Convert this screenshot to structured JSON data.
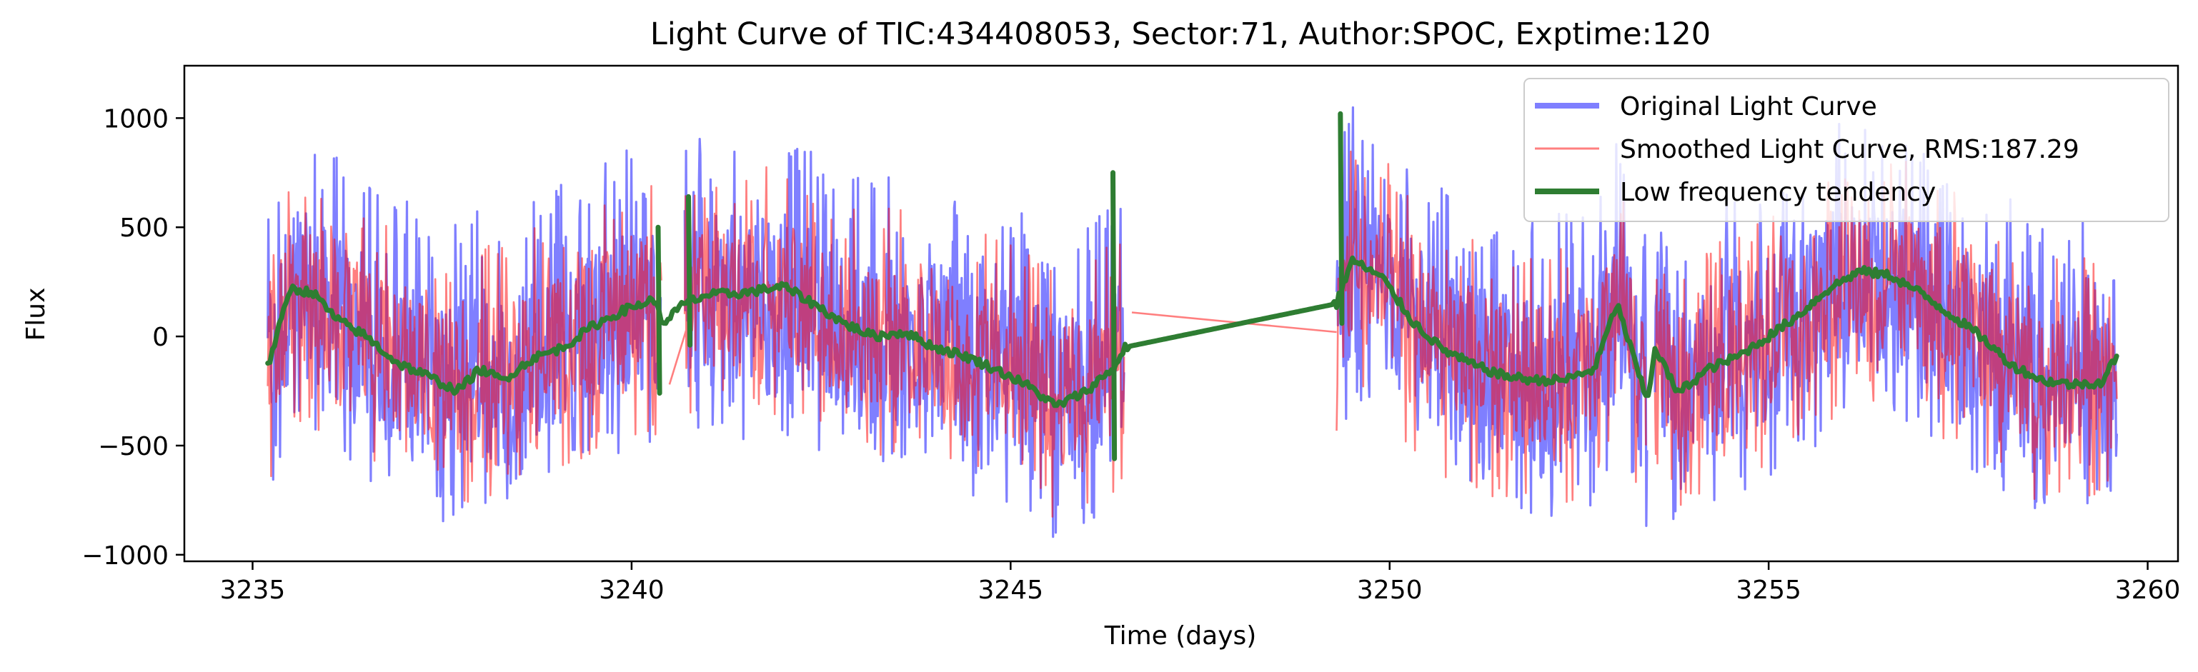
{
  "chart_data": {
    "type": "line",
    "title": "Light Curve of TIC:434408053, Sector:71, Author:SPOC, Exptime:120",
    "xlabel": "Time (days)",
    "ylabel": "Flux",
    "xlim": [
      3234.1,
      3260.4
    ],
    "ylim": [
      -1030,
      1240
    ],
    "x_ticks": [
      3235,
      3240,
      3245,
      3250,
      3255,
      3260
    ],
    "y_ticks": [
      -1000,
      -500,
      0,
      500,
      1000
    ],
    "x_tick_labels": [
      "3235",
      "3240",
      "3245",
      "3250",
      "3255",
      "3260"
    ],
    "y_tick_labels": [
      "−1000",
      "−500",
      "0",
      "500",
      "1000"
    ],
    "grid": false,
    "legend_position": "top-right",
    "segments": [
      [
        3235.2,
        3240.4
      ],
      [
        3240.7,
        3246.5
      ],
      [
        3249.3,
        3253.4
      ],
      [
        3253.5,
        3259.6
      ]
    ],
    "series": [
      {
        "name": "Original Light Curve",
        "color": "#0000ff",
        "opacity": 0.5,
        "noise_amplitude": [
          -620,
          720
        ]
      },
      {
        "name": "Smoothed Light Curve, RMS:187.29",
        "color": "#ff0000",
        "opacity": 0.5,
        "noise_amplitude": [
          -560,
          560
        ]
      },
      {
        "name": "Low frequency tendency",
        "color": "#2e7d32",
        "opacity": 1,
        "x": [
          3235.2,
          3235.5,
          3235.8,
          3236.1,
          3236.5,
          3236.9,
          3237.3,
          3237.7,
          3238.0,
          3238.3,
          3238.7,
          3239.1,
          3239.5,
          3239.9,
          3240.3,
          3240.4,
          3240.7,
          3241.0,
          3241.5,
          3242.0,
          3242.4,
          3242.8,
          3243.2,
          3243.6,
          3244.0,
          3244.4,
          3244.8,
          3245.2,
          3245.6,
          3246.0,
          3246.4,
          3246.5,
          3249.3,
          3249.5,
          3249.9,
          3250.3,
          3250.7,
          3251.1,
          3251.5,
          3251.9,
          3252.3,
          3252.7,
          3253.0,
          3253.4,
          3253.5,
          3253.8,
          3254.2,
          3254.6,
          3255.0,
          3255.4,
          3255.8,
          3256.2,
          3256.6,
          3257.0,
          3257.4,
          3257.8,
          3258.2,
          3258.6,
          3259.0,
          3259.4,
          3259.6
        ],
        "y": [
          -140,
          220,
          200,
          80,
          0,
          -120,
          -180,
          -250,
          -150,
          -200,
          -100,
          -50,
          50,
          120,
          170,
          60,
          150,
          190,
          200,
          230,
          150,
          60,
          0,
          20,
          -50,
          -90,
          -150,
          -220,
          -320,
          -250,
          -130,
          -50,
          150,
          350,
          270,
          70,
          -60,
          -130,
          -180,
          -200,
          -200,
          -150,
          150,
          -300,
          -50,
          -260,
          -150,
          -90,
          0,
          100,
          220,
          300,
          280,
          200,
          100,
          0,
          -130,
          -200,
          -220,
          -210,
          -80
        ]
      }
    ]
  }
}
